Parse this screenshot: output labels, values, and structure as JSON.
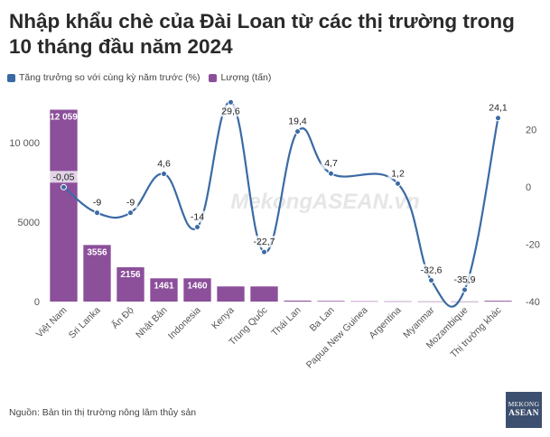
{
  "title": "Nhập khẩu chè của Đài Loan từ các thị trường trong 10 tháng đầu năm 2024",
  "legend": {
    "growth_label": "Tăng trưởng so với cùng kỳ năm trước (%)",
    "volume_label": "Lượng (tấn)"
  },
  "source": "Nguồn: Bản tin thị trường nông lâm thủy sản",
  "logo": {
    "line1": "MEKONG",
    "line2": "ASEAN"
  },
  "watermark": "MekongASEAN.vn",
  "colors": {
    "line": "#3a6aa4",
    "bar": "#8c4f9a",
    "bar_label_bg": "#8c4f9a"
  },
  "chart_data": {
    "type": "bar+line",
    "categories": [
      "Việt Nam",
      "Sri Lanka",
      "Ấn Độ",
      "Nhật Bản",
      "Indonesia",
      "Kenya",
      "Trung Quốc",
      "Thái Lan",
      "Ba Lan",
      "Papua New Guinea",
      "Argentina",
      "Myanmar",
      "Mozambique",
      "Thị trường khác"
    ],
    "bars": {
      "name": "Lượng (tấn)",
      "values": [
        12059,
        3556,
        2156,
        1461,
        1460,
        950,
        950,
        60,
        40,
        20,
        15,
        10,
        8,
        50
      ],
      "labels": [
        "12 059",
        "3556",
        "2156",
        "1461",
        "1460",
        "",
        "",
        "",
        "",
        "",
        "",
        "",
        "",
        ""
      ],
      "axis": "left",
      "ylim": [
        0,
        12600
      ],
      "ticks": [
        0,
        5000,
        10000
      ],
      "tick_labels": [
        "0",
        "5000",
        "10 000"
      ]
    },
    "line": {
      "name": "Tăng trưởng so với cùng kỳ năm trước (%)",
      "values": [
        -0.05,
        -9,
        -9,
        4.6,
        -14,
        29.6,
        -22.7,
        19.4,
        4.7,
        1.2,
        -32.6,
        -35.9,
        24.1
      ],
      "labels": [
        "-0,05",
        "-9",
        "-9",
        "4,6",
        "-14",
        "29,6",
        "-22,7",
        "19,4",
        "4,7",
        "1,2",
        "-32,6",
        "-35,9",
        "24,1"
      ],
      "point_indices": [
        0,
        1,
        2,
        3,
        4,
        5,
        6,
        7,
        8,
        10,
        11,
        12,
        13
      ],
      "axis": "right",
      "ylim": [
        -40,
        30
      ],
      "ticks": [
        -40,
        -20,
        0,
        20
      ],
      "tick_labels": [
        "-40",
        "-20",
        "0",
        "20"
      ]
    }
  }
}
